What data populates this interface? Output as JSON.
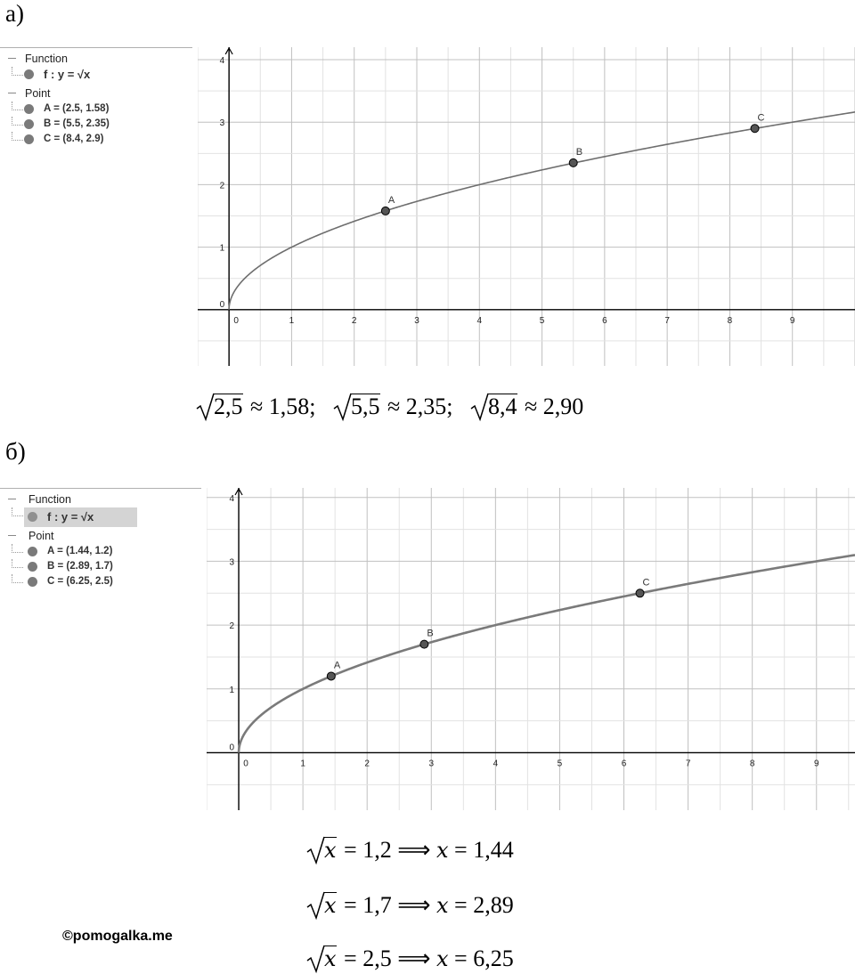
{
  "part_a": {
    "label": "а)",
    "algebra": {
      "function_header": "Function",
      "function_item": "f : y = √x",
      "point_header": "Point",
      "points": [
        "A = (2.5, 1.58)",
        "B = (5.5, 2.35)",
        "C = (8.4, 2.9)"
      ]
    },
    "result_line": [
      {
        "radicand": "2,5",
        "value": "≈ 1,58;"
      },
      {
        "radicand": "5,5",
        "value": "≈ 2,35;"
      },
      {
        "radicand": "8,4",
        "value": "≈ 2,90"
      }
    ]
  },
  "part_b": {
    "label": "б)",
    "algebra": {
      "function_header": "Function",
      "function_item": "f : y = √x",
      "point_header": "Point",
      "points": [
        "A = (1.44, 1.2)",
        "B = (2.89, 1.7)",
        "C = (6.25, 2.5)"
      ]
    },
    "equations": [
      {
        "lhs_var": "x",
        "rhs": "= 1,2 ⟹",
        "x": "x",
        "result": "= 1,44"
      },
      {
        "lhs_var": "x",
        "rhs": "= 1,7 ⟹",
        "x": "x",
        "result": "= 2,89"
      },
      {
        "lhs_var": "x",
        "rhs": "= 2,5 ⟹",
        "x": "x",
        "result": "= 6,25"
      }
    ]
  },
  "watermark": "©pomogalka.me",
  "chart_data": [
    {
      "type": "line",
      "function": "y = sqrt(x)",
      "xlim": [
        -0.5,
        10
      ],
      "ylim": [
        -0.9,
        4.2
      ],
      "x_ticks": [
        "0",
        "1",
        "2",
        "3",
        "4",
        "5",
        "6",
        "7",
        "8",
        "9"
      ],
      "y_ticks": [
        "0",
        "1",
        "2",
        "3",
        "4"
      ],
      "grid": true,
      "points": [
        {
          "label": "A",
          "x": 2.5,
          "y": 1.58
        },
        {
          "label": "B",
          "x": 5.5,
          "y": 2.35
        },
        {
          "label": "C",
          "x": 8.4,
          "y": 2.9
        }
      ]
    },
    {
      "type": "line",
      "function": "y = sqrt(x)",
      "xlim": [
        -0.5,
        9.6
      ],
      "ylim": [
        -0.9,
        4.15
      ],
      "x_ticks": [
        "0",
        "1",
        "2",
        "3",
        "4",
        "5",
        "6",
        "7",
        "8",
        "9"
      ],
      "y_ticks": [
        "0",
        "1",
        "2",
        "3",
        "4"
      ],
      "grid": true,
      "points": [
        {
          "label": "A",
          "x": 1.44,
          "y": 1.2
        },
        {
          "label": "B",
          "x": 2.89,
          "y": 1.7
        },
        {
          "label": "C",
          "x": 6.25,
          "y": 2.5
        }
      ]
    }
  ]
}
